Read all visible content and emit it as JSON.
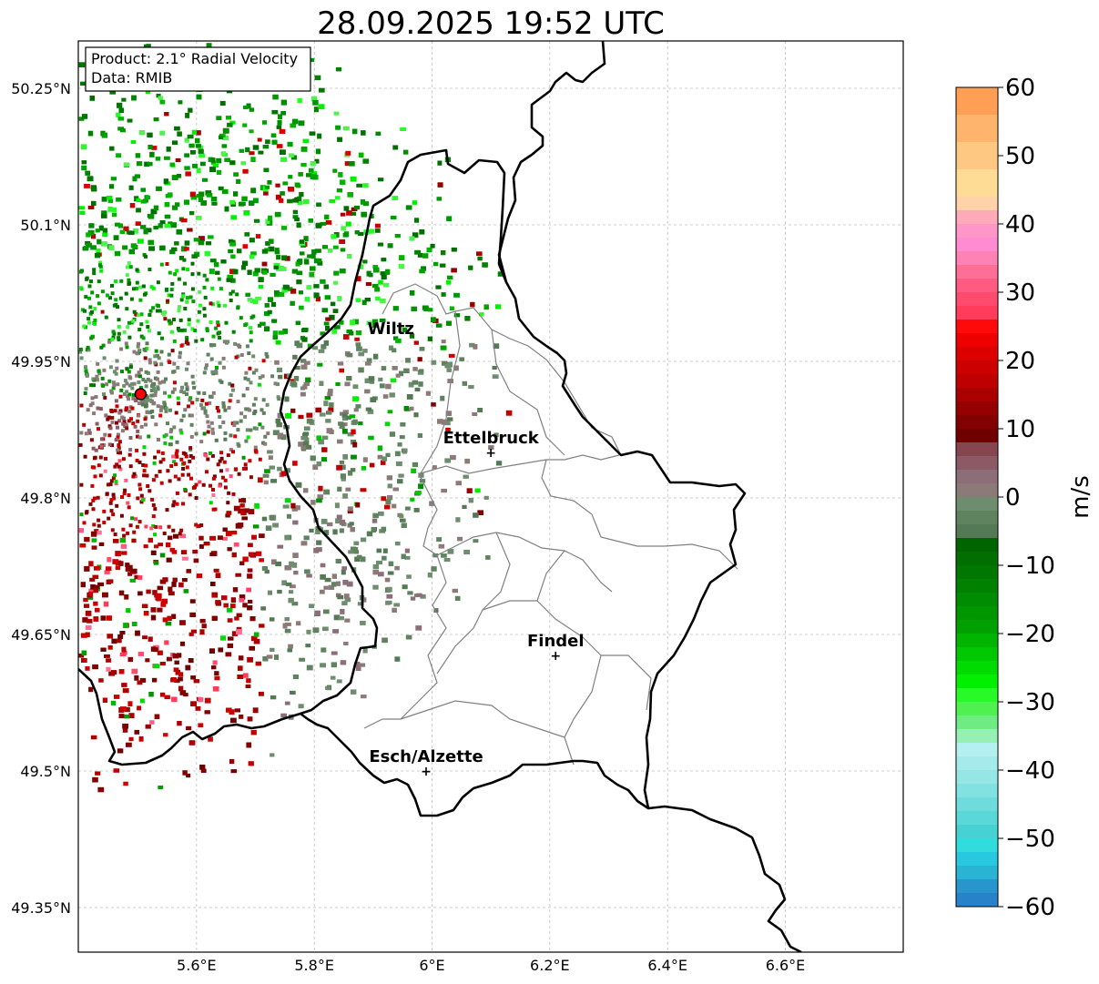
{
  "title": "28.09.2025 19:52 UTC",
  "info_box": {
    "product": "Product: 2.1° Radial Velocity",
    "data": "Data: RMIB"
  },
  "map": {
    "lon_range": [
      5.4,
      6.8
    ],
    "lat_range": [
      49.32,
      50.3
    ],
    "lon_ticks": [
      {
        "value": 5.6,
        "label": "5.6°E"
      },
      {
        "value": 5.8,
        "label": "5.8°E"
      },
      {
        "value": 6.0,
        "label": "6°E"
      },
      {
        "value": 6.2,
        "label": "6.2°E"
      },
      {
        "value": 6.4,
        "label": "6.4°E"
      },
      {
        "value": 6.6,
        "label": "6.6°E"
      }
    ],
    "lat_ticks": [
      {
        "value": 50.25,
        "label": "50.25°N"
      },
      {
        "value": 50.1,
        "label": "50.1°N"
      },
      {
        "value": 49.95,
        "label": "49.95°N"
      },
      {
        "value": 49.8,
        "label": "49.8°N"
      },
      {
        "value": 49.65,
        "label": "49.65°N"
      },
      {
        "value": 49.5,
        "label": "49.5°N"
      },
      {
        "value": 49.35,
        "label": "49.35°N"
      }
    ],
    "radar_site": {
      "lon": 5.505,
      "lat": 49.914
    },
    "cities": [
      {
        "name": "Wiltz",
        "lon": 5.93,
        "lat": 49.97,
        "marker": false
      },
      {
        "name": "Ettelbruck",
        "lon": 6.1,
        "lat": 49.85,
        "marker": true
      },
      {
        "name": "Findel",
        "lon": 6.21,
        "lat": 49.627,
        "marker": true
      },
      {
        "name": "Esch/Alzette",
        "lon": 5.99,
        "lat": 49.5,
        "marker": true
      }
    ]
  },
  "colorbar": {
    "label": "m/s",
    "min": -60,
    "max": 60,
    "ticks": [
      {
        "value": 60,
        "label": "60"
      },
      {
        "value": 50,
        "label": "50"
      },
      {
        "value": 40,
        "label": "40"
      },
      {
        "value": 30,
        "label": "30"
      },
      {
        "value": 20,
        "label": "20"
      },
      {
        "value": 10,
        "label": "10"
      },
      {
        "value": 0,
        "label": "0"
      },
      {
        "value": -10,
        "label": "−10"
      },
      {
        "value": -20,
        "label": "−20"
      },
      {
        "value": -30,
        "label": "−30"
      },
      {
        "value": -40,
        "label": "−40"
      },
      {
        "value": -50,
        "label": "−50"
      },
      {
        "value": -60,
        "label": "−60"
      }
    ],
    "bands": [
      {
        "from": 56,
        "to": 60,
        "color": "#ff9f55"
      },
      {
        "from": 52,
        "to": 56,
        "color": "#ffb46e"
      },
      {
        "from": 48,
        "to": 52,
        "color": "#ffc882"
      },
      {
        "from": 44,
        "to": 48,
        "color": "#ffdc96"
      },
      {
        "from": 42,
        "to": 44,
        "color": "#ffd2aa"
      },
      {
        "from": 40,
        "to": 42,
        "color": "#ffaab9"
      },
      {
        "from": 38,
        "to": 40,
        "color": "#ff96c8"
      },
      {
        "from": 36,
        "to": 38,
        "color": "#ff8cd2"
      },
      {
        "from": 34,
        "to": 36,
        "color": "#ff82b4"
      },
      {
        "from": 32,
        "to": 34,
        "color": "#ff6e96"
      },
      {
        "from": 30,
        "to": 32,
        "color": "#ff5a82"
      },
      {
        "from": 28,
        "to": 30,
        "color": "#ff4b6e"
      },
      {
        "from": 26,
        "to": 28,
        "color": "#ff3c5a"
      },
      {
        "from": 24,
        "to": 26,
        "color": "#ff0a0a"
      },
      {
        "from": 22,
        "to": 24,
        "color": "#ee0000"
      },
      {
        "from": 20,
        "to": 22,
        "color": "#dc0000"
      },
      {
        "from": 18,
        "to": 20,
        "color": "#cd0000"
      },
      {
        "from": 16,
        "to": 18,
        "color": "#be0000"
      },
      {
        "from": 14,
        "to": 16,
        "color": "#aa0000"
      },
      {
        "from": 12,
        "to": 14,
        "color": "#960000"
      },
      {
        "from": 10,
        "to": 12,
        "color": "#820000"
      },
      {
        "from": 8,
        "to": 10,
        "color": "#700000"
      },
      {
        "from": 6,
        "to": 8,
        "color": "#864650"
      },
      {
        "from": 4,
        "to": 6,
        "color": "#8c5a64"
      },
      {
        "from": 2,
        "to": 4,
        "color": "#8c6e78"
      },
      {
        "from": 0,
        "to": 2,
        "color": "#8c7a78"
      },
      {
        "from": -2,
        "to": 0,
        "color": "#6e8c6e"
      },
      {
        "from": -4,
        "to": -2,
        "color": "#5f825f"
      },
      {
        "from": -6,
        "to": -4,
        "color": "#557855"
      },
      {
        "from": -8,
        "to": -6,
        "color": "#006400"
      },
      {
        "from": -10,
        "to": -8,
        "color": "#006e00"
      },
      {
        "from": -12,
        "to": -10,
        "color": "#007800"
      },
      {
        "from": -14,
        "to": -12,
        "color": "#008200"
      },
      {
        "from": -16,
        "to": -14,
        "color": "#008c00"
      },
      {
        "from": -18,
        "to": -16,
        "color": "#009600"
      },
      {
        "from": -20,
        "to": -18,
        "color": "#00a000"
      },
      {
        "from": -22,
        "to": -20,
        "color": "#00b400"
      },
      {
        "from": -24,
        "to": -22,
        "color": "#00c800"
      },
      {
        "from": -26,
        "to": -24,
        "color": "#00dc00"
      },
      {
        "from": -28,
        "to": -26,
        "color": "#00f000"
      },
      {
        "from": -30,
        "to": -28,
        "color": "#28fa28"
      },
      {
        "from": -32,
        "to": -30,
        "color": "#50f050"
      },
      {
        "from": -34,
        "to": -32,
        "color": "#6eeb82"
      },
      {
        "from": -36,
        "to": -34,
        "color": "#96f0b4"
      },
      {
        "from": -38,
        "to": -36,
        "color": "#b4f0f0"
      },
      {
        "from": -40,
        "to": -38,
        "color": "#a5ebeb"
      },
      {
        "from": -42,
        "to": -40,
        "color": "#96e6e6"
      },
      {
        "from": -44,
        "to": -42,
        "color": "#82e1e1"
      },
      {
        "from": -46,
        "to": -44,
        "color": "#6edcdc"
      },
      {
        "from": -48,
        "to": -46,
        "color": "#5ad7d7"
      },
      {
        "from": -50,
        "to": -48,
        "color": "#46d2d2"
      },
      {
        "from": -52,
        "to": -50,
        "color": "#30dcdc"
      },
      {
        "from": -54,
        "to": -52,
        "color": "#28c8e0"
      },
      {
        "from": -56,
        "to": -54,
        "color": "#28b4d2"
      },
      {
        "from": -58,
        "to": -56,
        "color": "#2896cc"
      },
      {
        "from": -60,
        "to": -58,
        "color": "#2882c8"
      }
    ]
  }
}
